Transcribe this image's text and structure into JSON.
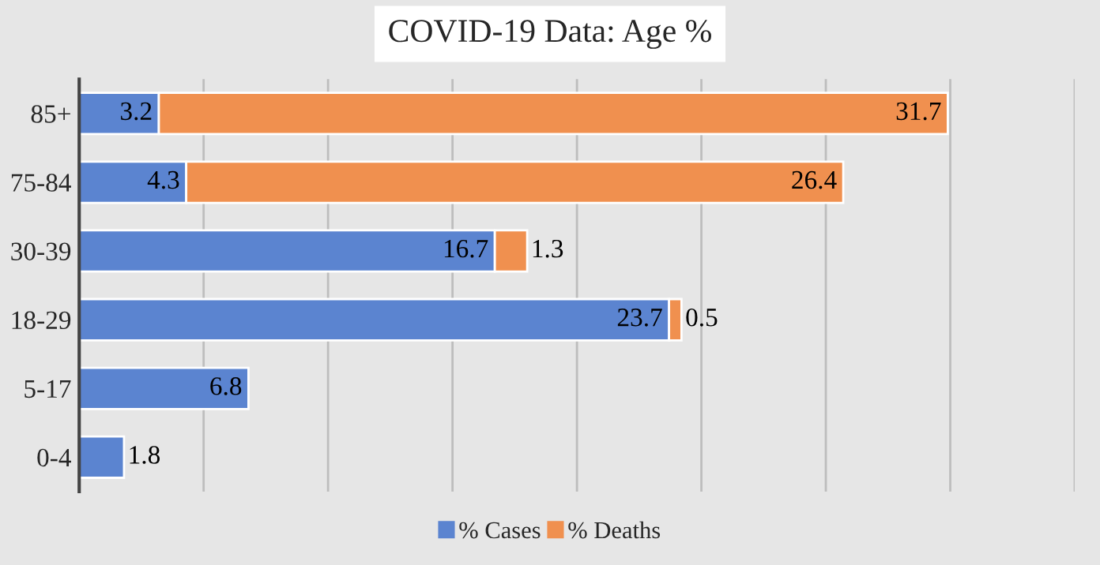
{
  "chart_data": {
    "type": "bar",
    "title": "COVID-19 Data: Age %",
    "orientation": "horizontal",
    "stacked": true,
    "categories": [
      "85+",
      "75-84",
      "30-39",
      "18-29",
      "5-17",
      "0-4"
    ],
    "series": [
      {
        "name": "% Cases",
        "color": "#5b84d0",
        "values": [
          3.2,
          4.3,
          16.7,
          23.7,
          6.8,
          1.8
        ]
      },
      {
        "name": "% Deaths",
        "color": "#f0904f",
        "values": [
          31.7,
          26.4,
          1.3,
          0.5,
          null,
          null
        ]
      }
    ],
    "xlim": [
      0,
      40
    ],
    "xticks": [
      {
        "value": 0,
        "label": null
      },
      {
        "value": 5,
        "label": null
      },
      {
        "value": 10,
        "label": null
      },
      {
        "value": 15,
        "label": null
      },
      {
        "value": 20,
        "label": null
      },
      {
        "value": 25,
        "label": null
      },
      {
        "value": 30,
        "label": null
      },
      {
        "value": 35,
        "label": null
      },
      {
        "value": 40,
        "label": null
      }
    ],
    "tick_labels": "y",
    "grid": "x",
    "legend": "bottom",
    "data_labels": true
  }
}
